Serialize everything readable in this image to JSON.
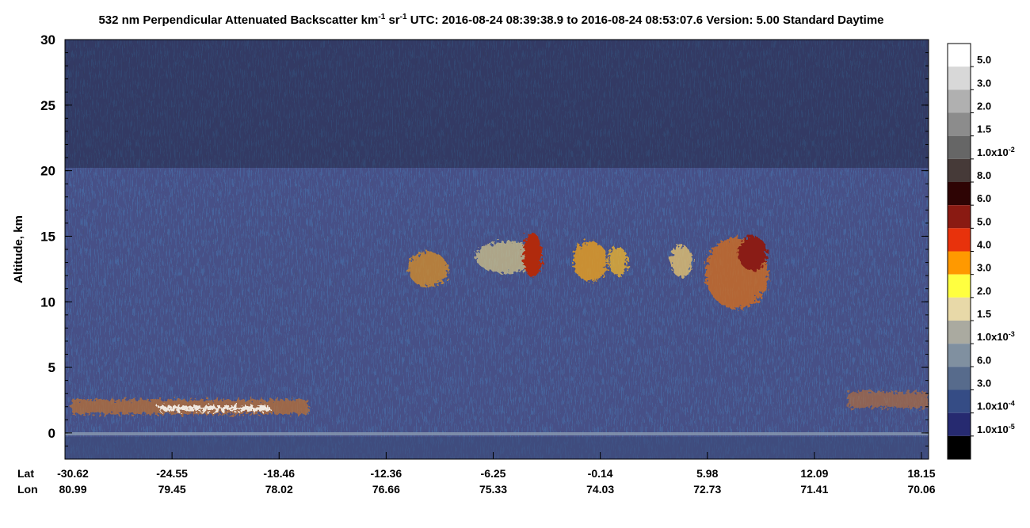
{
  "chart_data": {
    "type": "heatmap",
    "title": [
      "532 nm Perpendicular Attenuated Backscatter km",
      "-1",
      " sr",
      "-1",
      "  UTC: 2016-08-24 08:39:38.9 to 2016-08-24 08:53:07.6  Version: 5.00 Standard Daytime"
    ],
    "y_label": "Altitude, km",
    "ylim": [
      -2,
      30
    ],
    "yticks": [
      0,
      5,
      10,
      15,
      20,
      25,
      30
    ],
    "x_row_labels": [
      "Lat",
      "Lon"
    ],
    "lat": [
      -30.62,
      -24.55,
      -18.46,
      -12.36,
      -6.25,
      -0.14,
      5.98,
      12.09,
      18.15
    ],
    "lon": [
      80.99,
      79.45,
      78.02,
      76.66,
      75.33,
      74.03,
      72.73,
      71.41,
      70.06
    ],
    "colorbar": {
      "colors": [
        "#ffffff",
        "#d8d8d8",
        "#b0b0b0",
        "#8c8c8c",
        "#666666",
        "#463a38",
        "#2e0404",
        "#8a1a12",
        "#e8320c",
        "#ff9900",
        "#ffff40",
        "#e8d9a8",
        "#aaaaa0",
        "#8090a0",
        "#576b8c",
        "#354c85",
        "#262a70",
        "#000000"
      ],
      "labels": [
        {
          "text": "5.0"
        },
        {
          "text": "3.0"
        },
        {
          "text": "2.0"
        },
        {
          "text": "1.5"
        },
        {
          "text": "1.0x10",
          "sup": "-2"
        },
        {
          "text": "8.0"
        },
        {
          "text": "6.0"
        },
        {
          "text": "5.0"
        },
        {
          "text": "4.0"
        },
        {
          "text": "3.0"
        },
        {
          "text": "2.0"
        },
        {
          "text": "1.5"
        },
        {
          "text": "1.0x10",
          "sup": "-3"
        },
        {
          "text": "6.0"
        },
        {
          "text": "3.0"
        },
        {
          "text": "1.0x10",
          "sup": "-4"
        },
        {
          "text": "1.0x10",
          "sup": "-5"
        }
      ]
    }
  }
}
